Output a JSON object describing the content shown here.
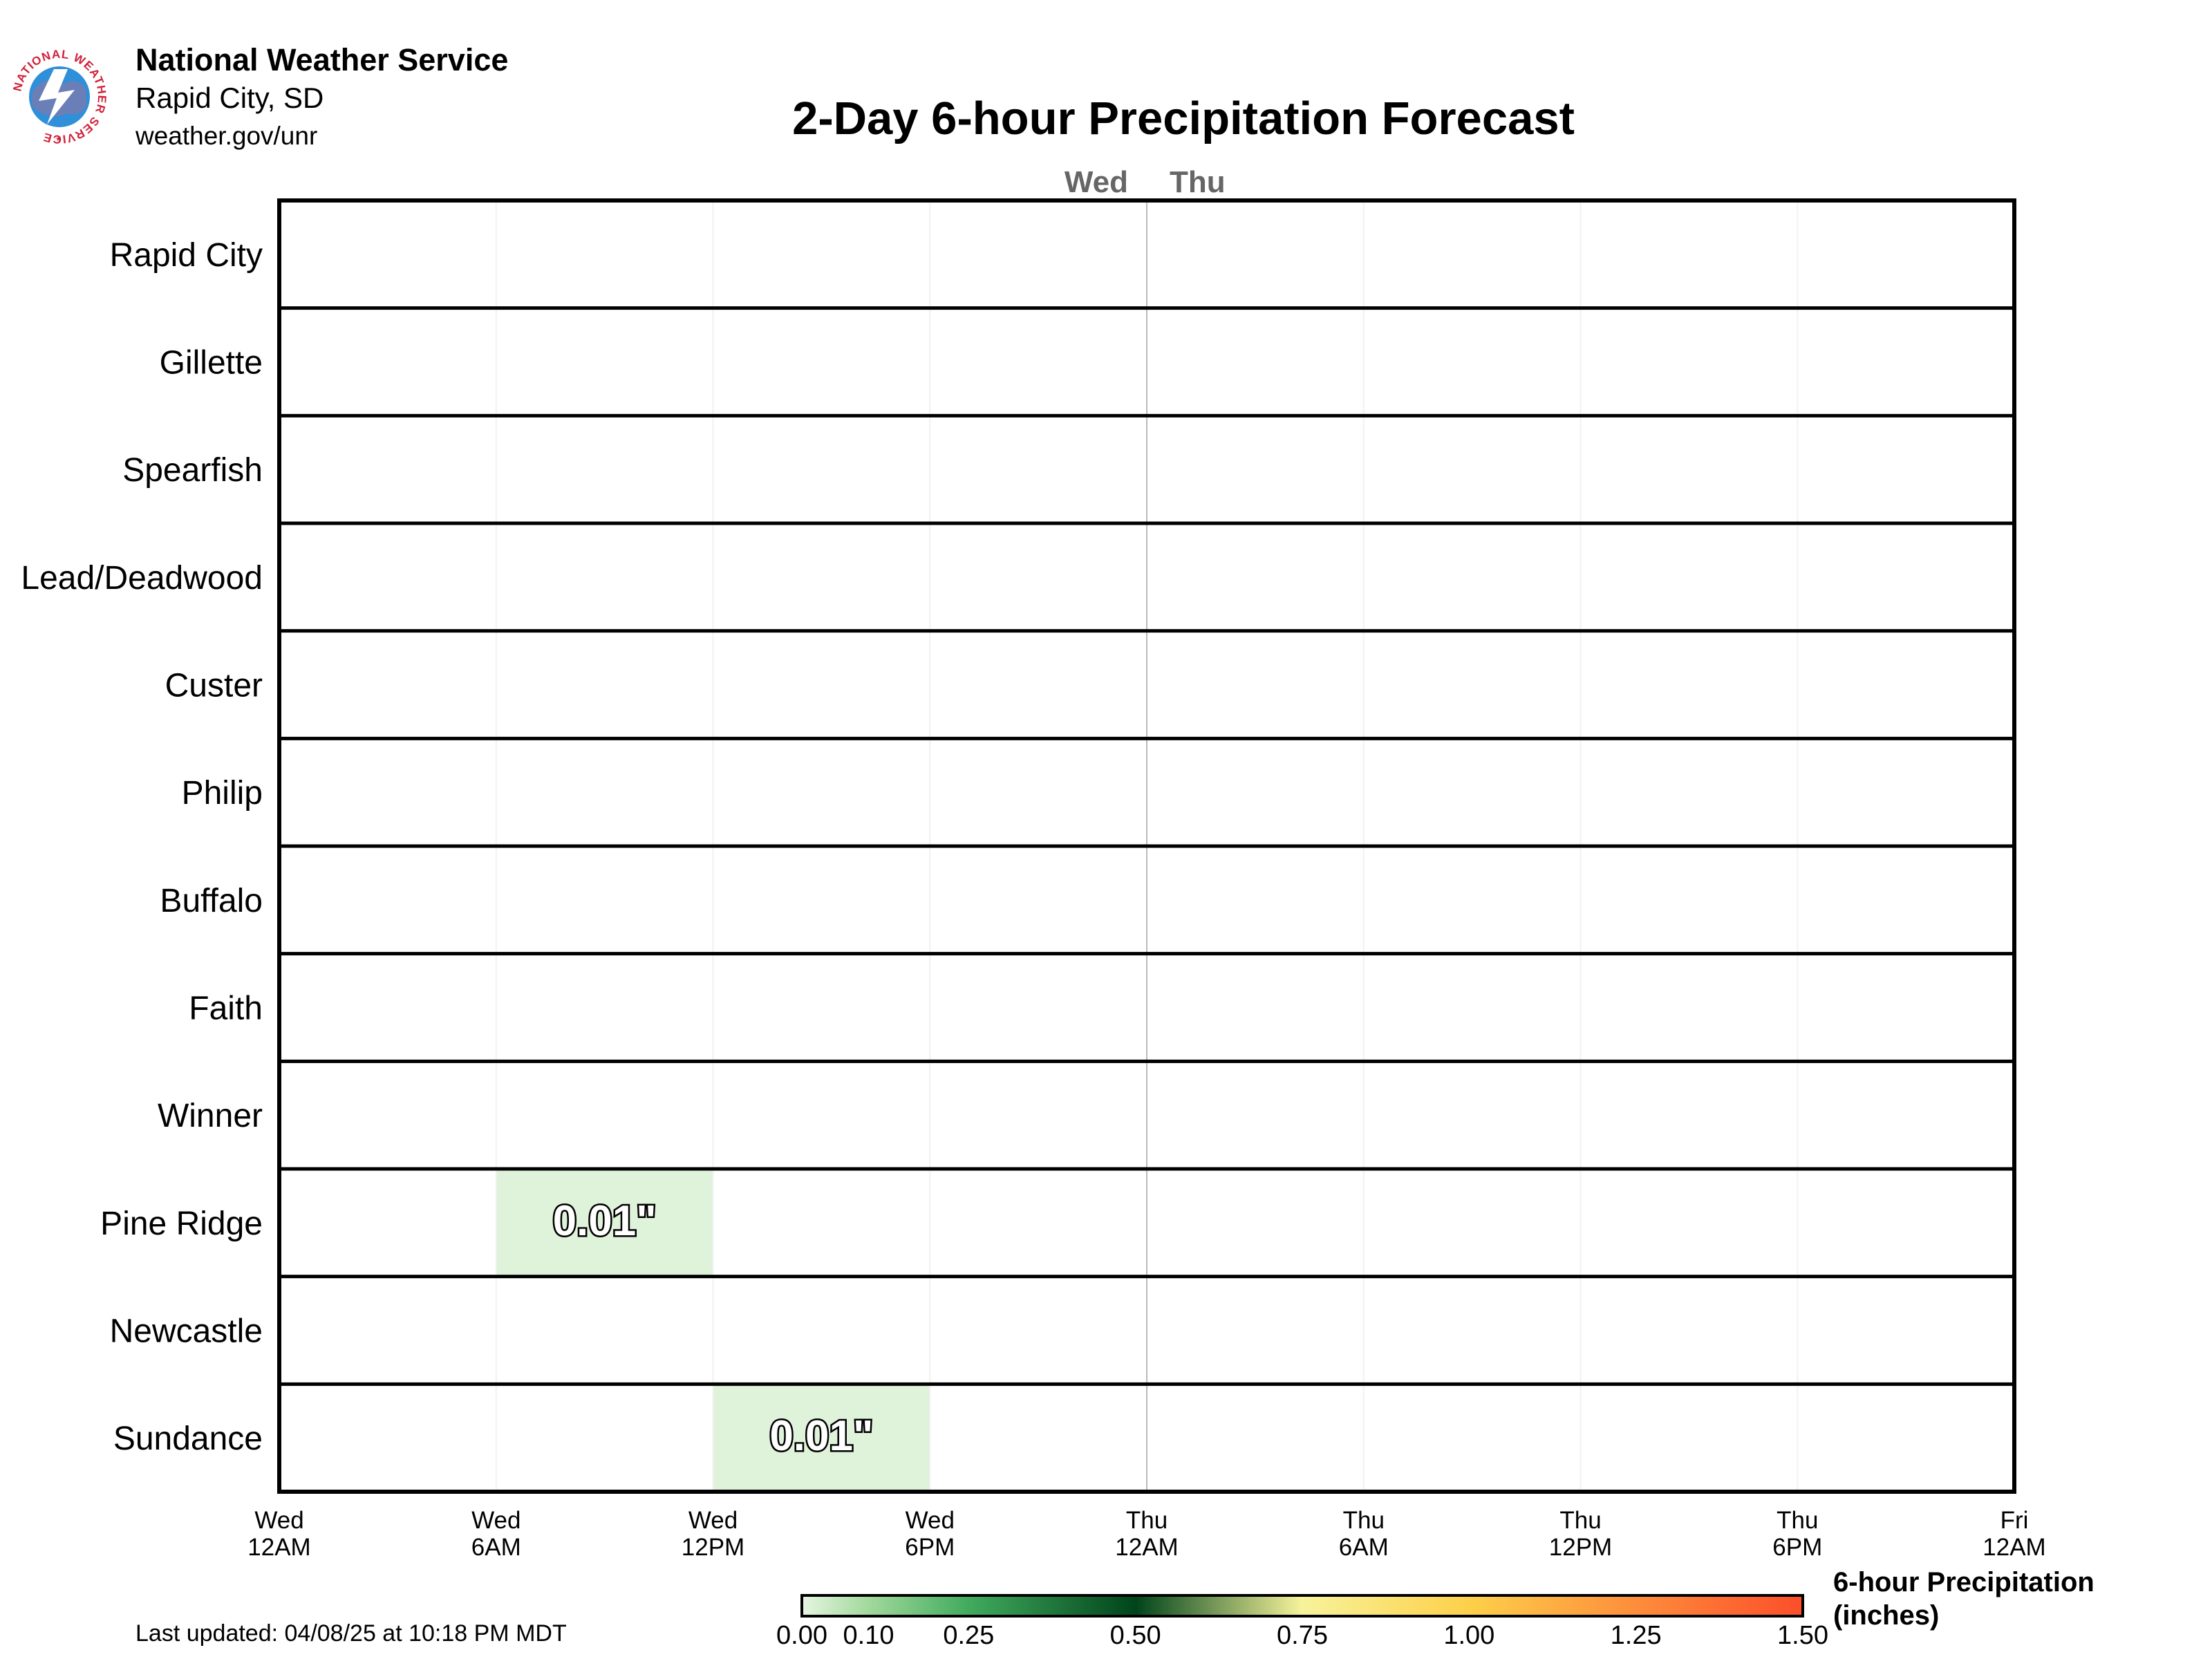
{
  "header": {
    "org_name": "National Weather Service",
    "office": "Rapid City, SD",
    "url": "weather.gov/unr",
    "logo_ring_text": "NATIONAL WEATHER SERVICE"
  },
  "last_updated": "Last updated: 04/08/25 at 10:18 PM MDT",
  "colors": {
    "grid_border": "#000000",
    "day_divider": "#bbbbbb",
    "day_label": "#666666",
    "low_precip_cell": "#dff2da"
  },
  "chart_data": {
    "type": "heatmap",
    "title": "2-Day 6-hour Precipitation Forecast",
    "day_labels": [
      "Wed",
      "Thu"
    ],
    "rows": [
      "Rapid City",
      "Gillette",
      "Spearfish",
      "Lead/Deadwood",
      "Custer",
      "Philip",
      "Buffalo",
      "Faith",
      "Winner",
      "Pine Ridge",
      "Newcastle",
      "Sundance"
    ],
    "time_ticks": [
      {
        "day": "Wed",
        "time": "12AM"
      },
      {
        "day": "Wed",
        "time": "6AM"
      },
      {
        "day": "Wed",
        "time": "12PM"
      },
      {
        "day": "Wed",
        "time": "6PM"
      },
      {
        "day": "Thu",
        "time": "12AM"
      },
      {
        "day": "Thu",
        "time": "6AM"
      },
      {
        "day": "Thu",
        "time": "12PM"
      },
      {
        "day": "Thu",
        "time": "6PM"
      },
      {
        "day": "Fri",
        "time": "12AM"
      }
    ],
    "periods": [
      "Wed 12AM-6AM",
      "Wed 6AM-12PM",
      "Wed 12PM-6PM",
      "Wed 6PM-12AM",
      "Thu 12AM-6AM",
      "Thu 6AM-12PM",
      "Thu 12PM-6PM",
      "Thu 6PM-12AM"
    ],
    "cells": [
      {
        "row": "Pine Ridge",
        "period": 1,
        "value": 0.01,
        "label": "0.01\""
      },
      {
        "row": "Sundance",
        "period": 2,
        "value": 0.01,
        "label": "0.01\""
      }
    ],
    "colorbar": {
      "title_line1": "6-hour Precipitation",
      "title_line2": "(inches)",
      "range": [
        0,
        1.5
      ],
      "ticks": [
        "0.00",
        "0.10",
        "0.25",
        "0.50",
        "0.75",
        "1.00",
        "1.25",
        "1.50"
      ],
      "stops": [
        {
          "value": 0.0,
          "color": "#e6f5e1"
        },
        {
          "value": 0.1,
          "color": "#a1d99b"
        },
        {
          "value": 0.25,
          "color": "#41ab5d"
        },
        {
          "value": 0.5,
          "color": "#00441b"
        },
        {
          "value": 0.75,
          "color": "#f7f39b"
        },
        {
          "value": 1.0,
          "color": "#fdd04a"
        },
        {
          "value": 1.25,
          "color": "#fd8d3c"
        },
        {
          "value": 1.5,
          "color": "#fc4e2a"
        }
      ]
    }
  }
}
